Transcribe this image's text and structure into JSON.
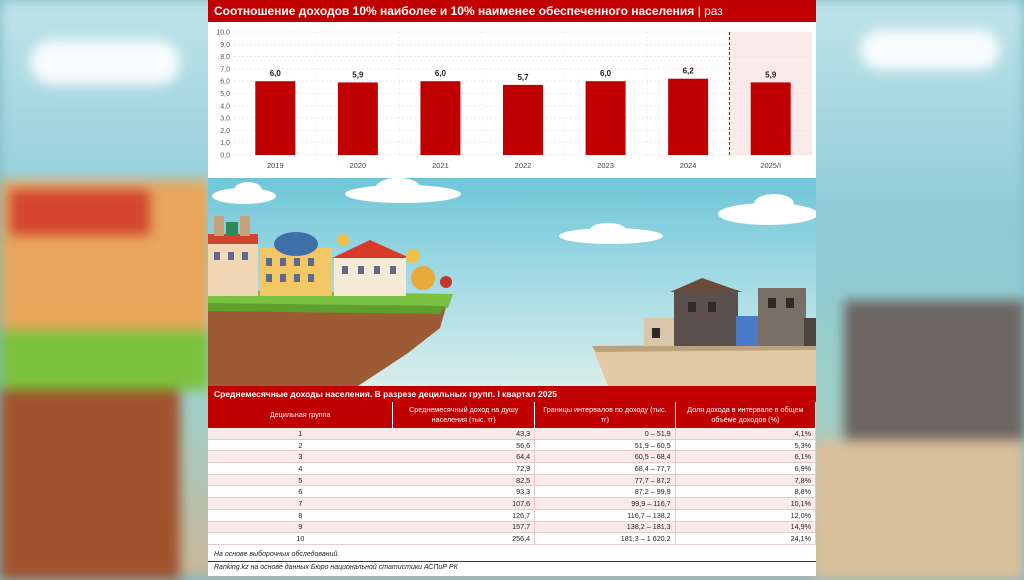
{
  "header": {
    "title": "Соотношение доходов 10% наиболее и 10% наименее обеспеченного населения",
    "unit": "| раз"
  },
  "chart_data": {
    "type": "bar",
    "categories": [
      "2019",
      "2020",
      "2021",
      "2022",
      "2023",
      "2024",
      "2025/I"
    ],
    "values": [
      6.0,
      5.9,
      6.0,
      5.7,
      6.0,
      6.2,
      5.9
    ],
    "value_labels": [
      "6,0",
      "5,9",
      "6,0",
      "5,7",
      "6,0",
      "6,2",
      "5,9"
    ],
    "y_ticks": [
      "0,0",
      "1,0",
      "2,0",
      "3,0",
      "4,0",
      "5,0",
      "6,0",
      "7,0",
      "8,0",
      "9,0",
      "10,0"
    ],
    "ylim": [
      0,
      10
    ],
    "grid": true,
    "highlighted_category": "2025/I",
    "colors": {
      "bar": "#c00000",
      "highlight_bg": "#fbeaea",
      "separator": "#c00000"
    }
  },
  "table": {
    "title": "Среднемесячные доходы населения. В разрезе децильных групп. I квартал 2025",
    "columns": [
      "Децильная группа",
      "Среднемесячный доход на душу населения (тыс. тг)",
      "Границы интервалов по доходу (тыс. тг)",
      "Доля дохода в интервале в общем объёме доходов (%)"
    ],
    "rows": [
      [
        "1",
        "43,3",
        "0 – 51,9",
        "4,1%"
      ],
      [
        "2",
        "56,6",
        "51,9 – 60,5",
        "5,3%"
      ],
      [
        "3",
        "64,4",
        "60,5 – 68,4",
        "6,1%"
      ],
      [
        "4",
        "72,9",
        "68,4 – 77,7",
        "6,9%"
      ],
      [
        "5",
        "82,5",
        "77,7 – 87,2",
        "7,8%"
      ],
      [
        "6",
        "93,3",
        "87,2 – 99,9",
        "8,8%"
      ],
      [
        "7",
        "107,6",
        "99,9 – 116,7",
        "10,1%"
      ],
      [
        "8",
        "126,7",
        "116,7 – 138,2",
        "12,0%"
      ],
      [
        "9",
        "157,7",
        "138,2 – 181,3",
        "14,9%"
      ],
      [
        "10",
        "256,4",
        "181,3 – 1 620,2",
        "24,1%"
      ]
    ]
  },
  "footnotes": {
    "note": "На основе выборочных обследований.",
    "source": "Ranking.kz на основе данных Бюро национальной статистики АСПиР РК"
  },
  "colors": {
    "accent": "#c00000"
  }
}
